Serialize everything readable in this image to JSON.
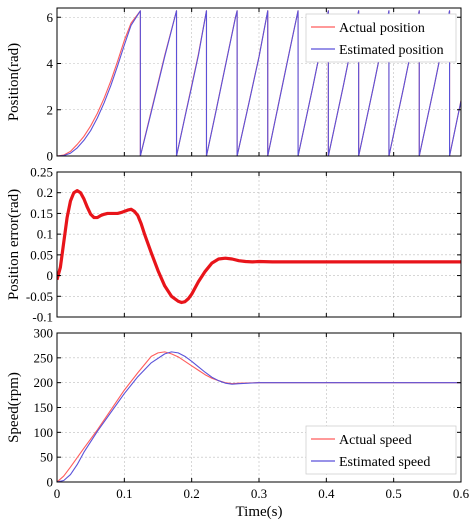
{
  "chart_data": [
    {
      "type": "line",
      "ylabel": "Position(rad)",
      "xlim": [
        0,
        0.6
      ],
      "ylim": [
        0,
        6.4
      ],
      "xticks": [
        0,
        0.1,
        0.2,
        0.3,
        0.4,
        0.5,
        0.6
      ],
      "yticks": [
        0,
        2,
        4,
        6
      ],
      "grid": true,
      "legend": "top-right",
      "series": [
        {
          "name": "Actual position",
          "color": "#ff5c5c",
          "x": [
            0,
            0.01,
            0.02,
            0.03,
            0.04,
            0.05,
            0.06,
            0.07,
            0.08,
            0.09,
            0.1,
            0.11,
            0.1238,
            0.1238,
            0.13,
            0.14,
            0.15,
            0.16,
            0.1775,
            0.1775,
            0.19,
            0.2,
            0.21,
            0.222,
            0.222,
            0.235,
            0.25,
            0.265,
            0.2675,
            0.2675,
            0.285,
            0.3,
            0.313,
            0.313,
            0.33,
            0.345,
            0.358,
            0.358,
            0.38,
            0.403,
            0.403,
            0.425,
            0.448,
            0.448,
            0.47,
            0.493,
            0.493,
            0.515,
            0.538,
            0.538,
            0.56,
            0.583,
            0.583,
            0.6
          ],
          "y": [
            0,
            0.04,
            0.2,
            0.5,
            0.85,
            1.3,
            1.85,
            2.5,
            3.25,
            4.1,
            5.0,
            5.75,
            6.28,
            0,
            0.75,
            1.95,
            3.15,
            4.35,
            6.28,
            0,
            1.7,
            3.05,
            4.4,
            6.28,
            0,
            1.8,
            3.9,
            6.0,
            6.28,
            0,
            2.3,
            4.3,
            6.28,
            0,
            2.4,
            4.5,
            6.28,
            0,
            3.0,
            6.28,
            0,
            3.0,
            6.28,
            0,
            3.0,
            6.28,
            0,
            3.0,
            6.28,
            0,
            3.0,
            6.28,
            0,
            2.4
          ]
        },
        {
          "name": "Estimated position",
          "color": "#5a52d9",
          "x": [
            0,
            0.01,
            0.02,
            0.03,
            0.04,
            0.05,
            0.06,
            0.07,
            0.08,
            0.09,
            0.1,
            0.11,
            0.1238,
            0.1238,
            0.13,
            0.14,
            0.15,
            0.16,
            0.1775,
            0.1775,
            0.19,
            0.2,
            0.21,
            0.222,
            0.222,
            0.235,
            0.25,
            0.265,
            0.2675,
            0.2675,
            0.285,
            0.3,
            0.313,
            0.313,
            0.33,
            0.345,
            0.358,
            0.358,
            0.38,
            0.403,
            0.403,
            0.425,
            0.448,
            0.448,
            0.47,
            0.493,
            0.493,
            0.515,
            0.538,
            0.538,
            0.56,
            0.583,
            0.583,
            0.6
          ],
          "y": [
            0,
            0.02,
            0.12,
            0.35,
            0.68,
            1.1,
            1.65,
            2.3,
            3.05,
            3.9,
            4.8,
            5.65,
            6.28,
            0,
            0.72,
            1.9,
            3.1,
            4.3,
            6.28,
            0,
            1.68,
            3.0,
            4.35,
            6.28,
            0,
            1.78,
            3.88,
            5.98,
            6.28,
            0,
            2.28,
            4.28,
            6.28,
            0,
            2.38,
            4.48,
            6.28,
            0,
            3.0,
            6.28,
            0,
            3.0,
            6.28,
            0,
            3.0,
            6.28,
            0,
            3.0,
            6.28,
            0,
            3.0,
            6.28,
            0,
            2.38
          ]
        }
      ]
    },
    {
      "type": "line",
      "ylabel": "Position error(rad)",
      "xlim": [
        0,
        0.6
      ],
      "ylim": [
        -0.1,
        0.25
      ],
      "xticks": [
        0,
        0.1,
        0.2,
        0.3,
        0.4,
        0.5,
        0.6
      ],
      "yticks": [
        -0.1,
        -0.05,
        0,
        0.05,
        0.1,
        0.15,
        0.2,
        0.25
      ],
      "yticklabels": [
        "-0.1",
        "-0.05",
        "0",
        "0.05",
        "0.1",
        "0.15",
        "0.2",
        "0.25"
      ],
      "grid": true,
      "series": [
        {
          "name": "",
          "color": "#e8141a",
          "x": [
            0,
            0.005,
            0.01,
            0.015,
            0.02,
            0.025,
            0.03,
            0.035,
            0.04,
            0.045,
            0.05,
            0.055,
            0.06,
            0.065,
            0.07,
            0.075,
            0.08,
            0.085,
            0.09,
            0.095,
            0.1,
            0.105,
            0.11,
            0.115,
            0.12,
            0.125,
            0.13,
            0.14,
            0.15,
            0.16,
            0.17,
            0.18,
            0.185,
            0.19,
            0.195,
            0.2,
            0.205,
            0.21,
            0.22,
            0.23,
            0.24,
            0.25,
            0.26,
            0.27,
            0.28,
            0.29,
            0.3,
            0.32,
            0.35,
            0.4,
            0.45,
            0.5,
            0.55,
            0.6
          ],
          "y": [
            -0.01,
            0.02,
            0.08,
            0.14,
            0.18,
            0.2,
            0.205,
            0.2,
            0.185,
            0.165,
            0.148,
            0.14,
            0.14,
            0.145,
            0.148,
            0.15,
            0.15,
            0.15,
            0.15,
            0.152,
            0.155,
            0.158,
            0.16,
            0.155,
            0.145,
            0.125,
            0.1,
            0.055,
            0.012,
            -0.025,
            -0.05,
            -0.062,
            -0.065,
            -0.063,
            -0.056,
            -0.045,
            -0.03,
            -0.015,
            0.01,
            0.03,
            0.04,
            0.042,
            0.04,
            0.036,
            0.034,
            0.033,
            0.034,
            0.033,
            0.033,
            0.033,
            0.033,
            0.033,
            0.033,
            0.033
          ]
        }
      ]
    },
    {
      "type": "line",
      "ylabel": "Speed(rpm)",
      "xlabel": "Time(s)",
      "xlim": [
        0,
        0.6
      ],
      "ylim": [
        0,
        300
      ],
      "xticks": [
        0,
        0.1,
        0.2,
        0.3,
        0.4,
        0.5,
        0.6
      ],
      "xticklabels": [
        "0",
        "0.1",
        "0.2",
        "0.3",
        "0.4",
        "0.5",
        "0.6"
      ],
      "yticks": [
        0,
        50,
        100,
        150,
        200,
        250,
        300
      ],
      "grid": true,
      "legend": "bottom-right",
      "series": [
        {
          "name": "Actual speed",
          "color": "#ff5c5c",
          "x": [
            0,
            0.01,
            0.02,
            0.04,
            0.06,
            0.08,
            0.1,
            0.12,
            0.14,
            0.15,
            0.16,
            0.17,
            0.18,
            0.19,
            0.2,
            0.21,
            0.22,
            0.23,
            0.24,
            0.25,
            0.26,
            0.27,
            0.3,
            0.4,
            0.5,
            0.6
          ],
          "y": [
            0,
            12,
            30,
            68,
            105,
            145,
            185,
            220,
            253,
            260,
            262,
            258,
            252,
            243,
            234,
            225,
            216,
            209,
            204,
            200,
            198,
            199,
            200,
            200,
            200,
            200
          ]
        },
        {
          "name": "Estimated speed",
          "color": "#5a52d9",
          "x": [
            0,
            0.01,
            0.02,
            0.03,
            0.04,
            0.06,
            0.08,
            0.1,
            0.12,
            0.14,
            0.16,
            0.17,
            0.18,
            0.19,
            0.2,
            0.21,
            0.22,
            0.23,
            0.24,
            0.25,
            0.26,
            0.27,
            0.3,
            0.4,
            0.5,
            0.6
          ],
          "y": [
            0,
            3,
            15,
            35,
            60,
            102,
            140,
            178,
            212,
            240,
            258,
            262,
            260,
            253,
            243,
            232,
            221,
            211,
            204,
            199,
            197,
            198,
            200,
            200,
            200,
            200
          ]
        }
      ]
    }
  ]
}
